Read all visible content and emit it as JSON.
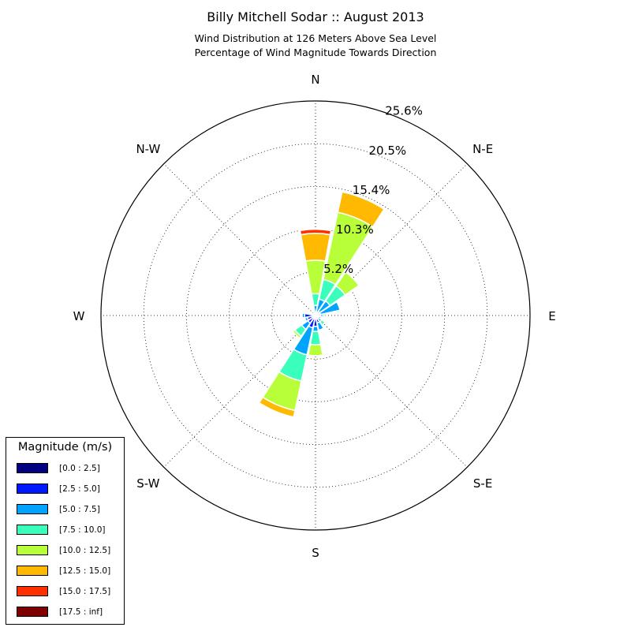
{
  "title": "Billy Mitchell Sodar :: August 2013",
  "subtitle_line1": "Wind Distribution at 126 Meters Above Sea Level",
  "subtitle_line2": "Percentage of Wind Magnitude Towards Direction",
  "chart_data": {
    "type": "windrose",
    "directions": [
      "N",
      "NNE",
      "NE",
      "ENE",
      "E",
      "ESE",
      "SE",
      "SSE",
      "S",
      "SSW",
      "SW",
      "WSW",
      "W",
      "WNW",
      "NW",
      "NNW"
    ],
    "compass_labels": [
      {
        "text": "N",
        "angle_deg": 0
      },
      {
        "text": "N-E",
        "angle_deg": 45
      },
      {
        "text": "E",
        "angle_deg": 90
      },
      {
        "text": "S-E",
        "angle_deg": 135
      },
      {
        "text": "S",
        "angle_deg": 180
      },
      {
        "text": "S-W",
        "angle_deg": 225
      },
      {
        "text": "W",
        "angle_deg": 270
      },
      {
        "text": "N-W",
        "angle_deg": 315
      }
    ],
    "radial_ticks": [
      5.2,
      10.3,
      15.4,
      20.5,
      25.6
    ],
    "radial_tick_labels": [
      "5.2%",
      "10.3%",
      "15.4%",
      "20.5%",
      "25.6%"
    ],
    "rmax": 25.6,
    "bins": [
      {
        "name": "[0.0 : 2.5]",
        "color": "#000080"
      },
      {
        "name": "[2.5 : 5.0]",
        "color": "#0018ff"
      },
      {
        "name": "[5.0 : 7.5]",
        "color": "#00a4ff"
      },
      {
        "name": "[7.5 : 10.0]",
        "color": "#3affbc"
      },
      {
        "name": "[10.0 : 12.5]",
        "color": "#b8ff3a"
      },
      {
        "name": "[12.5 : 15.0]",
        "color": "#ffb900"
      },
      {
        "name": "[15.0 : 17.5]",
        "color": "#ff3000"
      },
      {
        "name": "[17.5 : inf]",
        "color": "#800000"
      }
    ],
    "cumulative_percent": [
      [
        0.1,
        0.4,
        1.2,
        2.6,
        6.6,
        9.8,
        10.3,
        10.3
      ],
      [
        0.1,
        0.4,
        2.0,
        4.4,
        12.6,
        15.1,
        15.1,
        15.1
      ],
      [
        0.1,
        0.6,
        2.1,
        4.3,
        6.3,
        6.3,
        6.3,
        6.3
      ],
      [
        0.1,
        0.6,
        3.0,
        3.0,
        3.0,
        3.0,
        3.0,
        3.0
      ],
      [
        0.1,
        0.6,
        0.9,
        1.1,
        1.1,
        1.1,
        1.1,
        1.1
      ],
      [
        0.1,
        0.4,
        0.7,
        0.7,
        0.7,
        0.7,
        0.7,
        0.7
      ],
      [
        0.1,
        0.4,
        0.9,
        1.4,
        1.4,
        1.4,
        1.4,
        1.4
      ],
      [
        0.1,
        0.9,
        1.8,
        1.8,
        1.8,
        1.8,
        1.8,
        1.8
      ],
      [
        0.1,
        1.3,
        1.9,
        3.5,
        4.8,
        4.8,
        4.8,
        4.8
      ],
      [
        0.1,
        1.5,
        4.8,
        8.0,
        11.6,
        12.4,
        12.4,
        12.4
      ],
      [
        0.1,
        1.1,
        2.0,
        3.0,
        3.3,
        3.3,
        3.3,
        3.3
      ],
      [
        0.1,
        1.0,
        1.3,
        1.3,
        1.3,
        1.3,
        1.3,
        1.3
      ],
      [
        0.1,
        1.3,
        1.6,
        1.6,
        1.6,
        1.6,
        1.6,
        1.6
      ],
      [
        0.1,
        0.5,
        0.5,
        0.5,
        0.5,
        0.5,
        0.5,
        0.5
      ],
      [
        0.1,
        0.3,
        0.3,
        0.3,
        0.3,
        0.3,
        0.3,
        0.3
      ],
      [
        0.1,
        0.3,
        0.6,
        0.6,
        0.6,
        0.6,
        0.6,
        0.6
      ]
    ],
    "grid": true,
    "legend_position": "lower-left"
  },
  "legend": {
    "title": "Magnitude (m/s)",
    "items": [
      "[0.0 : 2.5]",
      "[2.5 : 5.0]",
      "[5.0 : 7.5]",
      "[7.5 : 10.0]",
      "[10.0 : 12.5]",
      "[12.5 : 15.0]",
      "[15.0 : 17.5]",
      "[17.5 : inf]"
    ]
  }
}
